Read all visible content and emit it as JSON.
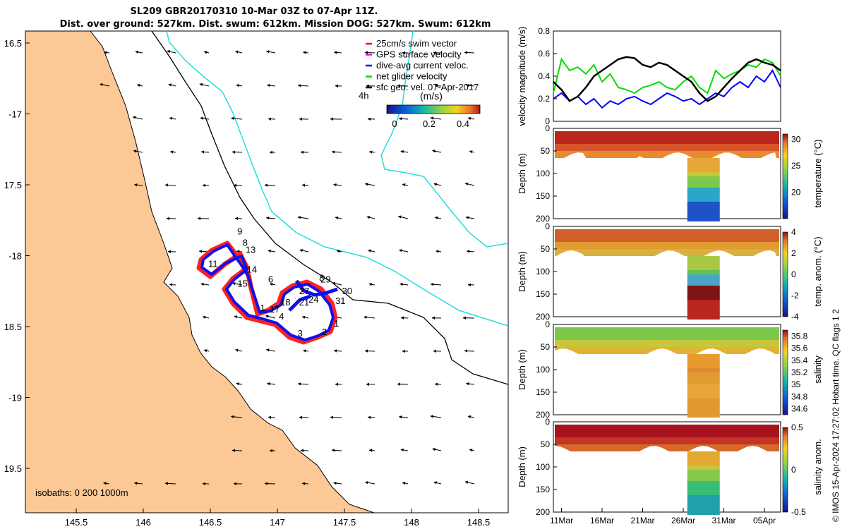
{
  "title_line1": "SL209 GBR20170310 10-Mar 03Z to 07-Apr 11Z.",
  "title_line2": "Dist. over ground: 527km. Dist. swum: 612km. Mission DOG: 527km. Swum: 612km",
  "map": {
    "lon_ticks": [
      "145.5",
      "146",
      "146.5",
      "147",
      "147.5",
      "148",
      "148.5"
    ],
    "lat_ticks": [
      "16.5",
      "-17",
      "17.5",
      "-18",
      "18.5",
      "-19",
      "19.5"
    ],
    "legend": [
      {
        "label": "25cm/s swim vector",
        "color": "#ff0000"
      },
      {
        "label": "GPS surface velocity",
        "color": "#ff00ff"
      },
      {
        "label": "dive-avg current veloc.",
        "color": "#0000ff"
      },
      {
        "label": "net glider velocity",
        "color": "#00dd00"
      },
      {
        "label": "sfc geo. vel. 07-Apr-2017",
        "color": "#000000"
      }
    ],
    "time_note": "4h",
    "colorbar_label": "(m/s)",
    "colorbar_ticks": [
      "0",
      "0.2",
      "0.4"
    ],
    "isobath_label": "isobaths: 0   200  1000m",
    "day_labels": [
      {
        "t": "9",
        "lon": 146.72,
        "lat": -17.85
      },
      {
        "t": "8",
        "lon": 146.76,
        "lat": -17.93
      },
      {
        "t": "13",
        "lon": 146.8,
        "lat": -17.98
      },
      {
        "t": "11",
        "lon": 146.52,
        "lat": -18.08
      },
      {
        "t": "14",
        "lon": 146.81,
        "lat": -18.12
      },
      {
        "t": "6",
        "lon": 146.95,
        "lat": -18.19
      },
      {
        "t": "15",
        "lon": 146.74,
        "lat": -18.22
      },
      {
        "t": "8",
        "lon": 147.33,
        "lat": -18.18
      },
      {
        "t": "29",
        "lon": 147.36,
        "lat": -18.19
      },
      {
        "t": "27",
        "lon": 147.2,
        "lat": -18.27
      },
      {
        "t": "30",
        "lon": 147.52,
        "lat": -18.27
      },
      {
        "t": "24",
        "lon": 147.27,
        "lat": -18.33
      },
      {
        "t": "31",
        "lon": 147.47,
        "lat": -18.34
      },
      {
        "t": "21",
        "lon": 147.2,
        "lat": -18.35
      },
      {
        "t": "18",
        "lon": 147.06,
        "lat": -18.35
      },
      {
        "t": "17",
        "lon": 146.98,
        "lat": -18.4
      },
      {
        "t": "1",
        "lon": 146.89,
        "lat": -18.39
      },
      {
        "t": "4",
        "lon": 147.03,
        "lat": -18.45
      },
      {
        "t": "1",
        "lon": 147.44,
        "lat": -18.5
      },
      {
        "t": "3",
        "lon": 147.17,
        "lat": -18.57
      },
      {
        "t": "2",
        "lon": 147.35,
        "lat": -18.56
      }
    ]
  },
  "chart_data": [
    {
      "type": "line",
      "ylabel": "velocity magnitude (m/s)",
      "ylim": [
        0,
        0.8
      ],
      "yticks": [
        "0",
        "0.2",
        "0.4",
        "0.6",
        "0.8"
      ],
      "x_range_days": [
        10,
        38
      ],
      "series": [
        {
          "name": "net glider velocity",
          "color": "#00dd00",
          "x": [
            10,
            11,
            12,
            13,
            14,
            15,
            16,
            17,
            18,
            19,
            20,
            21,
            22,
            23,
            24,
            25,
            26,
            27,
            28,
            29,
            30,
            31,
            32,
            33,
            34,
            35,
            36,
            37,
            38
          ],
          "values": [
            0.25,
            0.55,
            0.45,
            0.48,
            0.42,
            0.5,
            0.35,
            0.42,
            0.3,
            0.28,
            0.25,
            0.3,
            0.32,
            0.35,
            0.3,
            0.28,
            0.35,
            0.4,
            0.3,
            0.25,
            0.45,
            0.38,
            0.42,
            0.45,
            0.5,
            0.48,
            0.55,
            0.52,
            0.4
          ]
        },
        {
          "name": "dive-avg current veloc.",
          "color": "#0000ff",
          "x": [
            10,
            11,
            12,
            13,
            14,
            15,
            16,
            17,
            18,
            19,
            20,
            21,
            22,
            23,
            24,
            25,
            26,
            27,
            28,
            29,
            30,
            31,
            32,
            33,
            34,
            35,
            36,
            37,
            38
          ],
          "values": [
            0.2,
            0.25,
            0.18,
            0.22,
            0.15,
            0.2,
            0.12,
            0.18,
            0.15,
            0.2,
            0.22,
            0.18,
            0.15,
            0.2,
            0.25,
            0.22,
            0.18,
            0.2,
            0.15,
            0.2,
            0.25,
            0.22,
            0.3,
            0.35,
            0.3,
            0.4,
            0.35,
            0.45,
            0.3
          ]
        },
        {
          "name": "sfc geo. vel.",
          "color": "#000000",
          "x": [
            10,
            11,
            12,
            13,
            14,
            15,
            16,
            17,
            18,
            19,
            20,
            21,
            22,
            23,
            24,
            25,
            26,
            27,
            28,
            29,
            30,
            31,
            32,
            33,
            34,
            35,
            36,
            37,
            38
          ],
          "values": [
            0.35,
            0.28,
            0.18,
            0.22,
            0.3,
            0.4,
            0.45,
            0.5,
            0.55,
            0.57,
            0.56,
            0.5,
            0.48,
            0.52,
            0.5,
            0.45,
            0.4,
            0.35,
            0.25,
            0.18,
            0.22,
            0.3,
            0.38,
            0.45,
            0.52,
            0.55,
            0.52,
            0.5,
            0.45
          ]
        }
      ]
    },
    {
      "type": "heatmap",
      "ylabel": "Depth (m)",
      "colorbar_label": "temperature (°C)",
      "ylim": [
        0,
        200
      ],
      "yticks": [
        "0",
        "50",
        "100",
        "150",
        "200"
      ],
      "colorbar_ticks": [
        "20",
        "25",
        "30"
      ],
      "clim": [
        15,
        31
      ]
    },
    {
      "type": "heatmap",
      "ylabel": "Depth (m)",
      "colorbar_label": "temp. anom. (°C)",
      "ylim": [
        0,
        200
      ],
      "yticks": [
        "0",
        "50",
        "100",
        "150",
        "200"
      ],
      "colorbar_ticks": [
        "4",
        "2",
        "0",
        "-2",
        "-4"
      ],
      "clim": [
        -4,
        4
      ]
    },
    {
      "type": "heatmap",
      "ylabel": "Depth (m)",
      "colorbar_label": "salinity",
      "ylim": [
        0,
        200
      ],
      "yticks": [
        "0",
        "50",
        "100",
        "150",
        "200"
      ],
      "colorbar_ticks": [
        "35.8",
        "35.6",
        "35.4",
        "35.2",
        "35",
        "34.8",
        "34.6"
      ],
      "clim": [
        34.5,
        35.9
      ]
    },
    {
      "type": "heatmap",
      "ylabel": "Depth (m)",
      "colorbar_label": "salinity anom.",
      "ylim": [
        0,
        200
      ],
      "yticks": [
        "0",
        "50",
        "100",
        "150",
        "200"
      ],
      "colorbar_ticks": [
        "0.5",
        "0",
        "-0.5"
      ],
      "clim": [
        -0.5,
        0.5
      ]
    }
  ],
  "time_axis": {
    "labels": [
      "11Mar",
      "16Mar",
      "21Mar",
      "26Mar",
      "31Mar",
      "05Apr"
    ],
    "days": [
      11,
      16,
      21,
      26,
      31,
      36
    ]
  },
  "side_note": "© IMOS 15-Apr-2024 17:27:02 Hobart time. QC flags 1  2"
}
